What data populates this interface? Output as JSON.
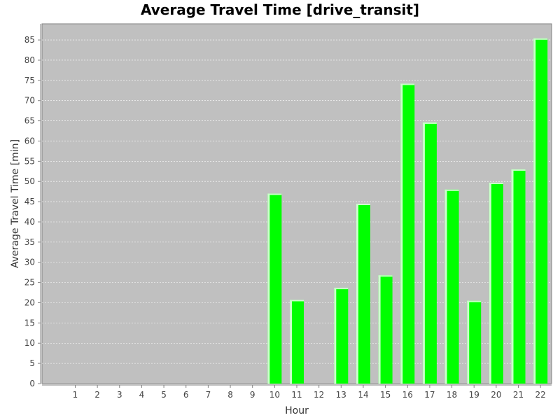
{
  "chart_data": {
    "type": "bar",
    "title": "Average Travel Time [drive_transit]",
    "xlabel": "Hour",
    "ylabel": "Average Travel Time [min]",
    "categories": [
      "1",
      "2",
      "3",
      "4",
      "5",
      "6",
      "7",
      "8",
      "9",
      "10",
      "11",
      "12",
      "13",
      "14",
      "15",
      "16",
      "17",
      "18",
      "19",
      "20",
      "21",
      "22"
    ],
    "values": [
      0,
      0,
      0,
      0,
      0,
      0,
      0,
      0,
      0,
      47,
      20.7,
      0,
      23.7,
      44.5,
      26.8,
      74.2,
      64.6,
      48,
      20.5,
      49.7,
      53,
      85.4
    ],
    "ylim": [
      0,
      89
    ],
    "yticks": [
      0,
      5,
      10,
      15,
      20,
      25,
      30,
      35,
      40,
      45,
      50,
      55,
      60,
      65,
      70,
      75,
      80,
      85
    ],
    "grid": true,
    "legend": "none",
    "colors": {
      "bar": "#00ff00",
      "bar_highlight": "#ccffcc",
      "plot_background": "#c0c0c0",
      "grid": "#ffffff",
      "page_background": "#ffffff"
    }
  }
}
